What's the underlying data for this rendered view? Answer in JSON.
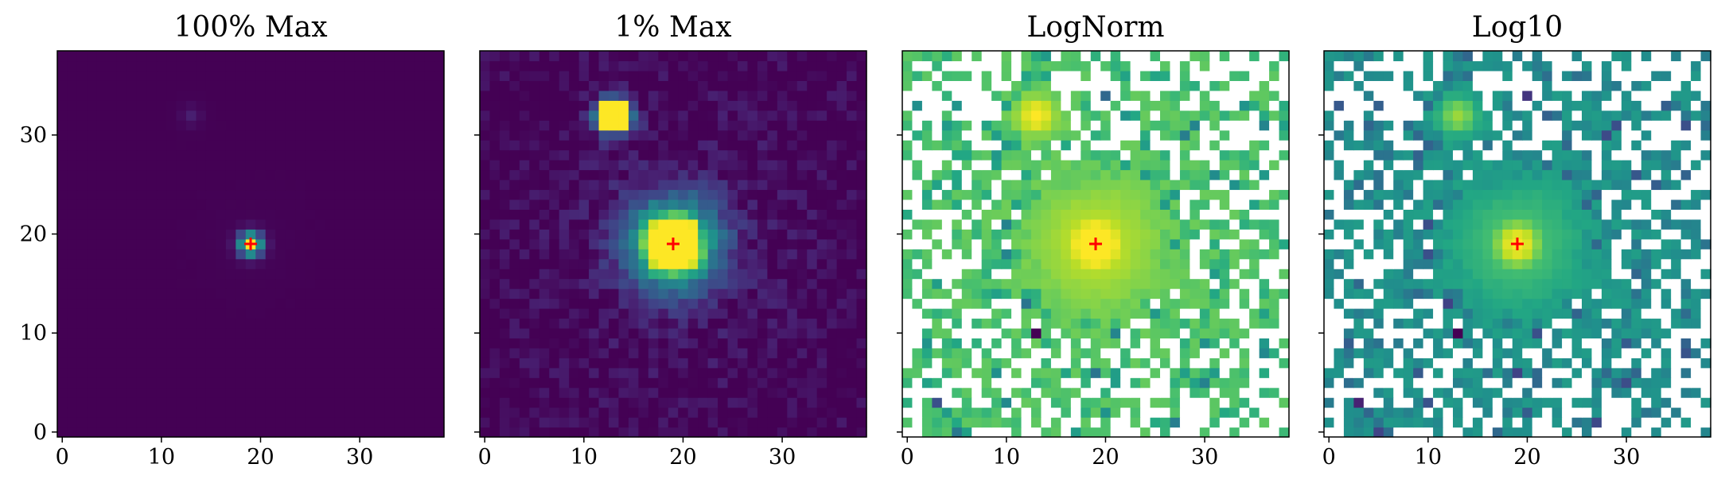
{
  "figure": {
    "colormap": "viridis",
    "masked_color": "#ffffff",
    "marker_color": "#ff0000"
  },
  "chart_data": [
    {
      "type": "heatmap",
      "title": "100% Max",
      "scale": "linear",
      "display_range_fraction_of_max": [
        0,
        1.0
      ],
      "grid_size": [
        39,
        39
      ],
      "xlim": [
        -0.5,
        38.5
      ],
      "ylim": [
        -0.5,
        38.5
      ],
      "xticks": [
        0,
        10,
        20,
        30
      ],
      "yticks": [
        0,
        10,
        20,
        30
      ],
      "ytick_labels_shown": true,
      "marker": {
        "x": 19,
        "y": 19,
        "symbol": "+"
      },
      "sources": [
        {
          "name": "main",
          "x": 19,
          "y": 19
        },
        {
          "name": "secondary",
          "x": 13,
          "y": 32
        }
      ],
      "grid": false
    },
    {
      "type": "heatmap",
      "title": "1% Max",
      "scale": "linear",
      "display_range_fraction_of_max": [
        0,
        0.01
      ],
      "grid_size": [
        39,
        39
      ],
      "xlim": [
        -0.5,
        38.5
      ],
      "ylim": [
        -0.5,
        38.5
      ],
      "xticks": [
        0,
        10,
        20,
        30
      ],
      "yticks": [
        0,
        10,
        20,
        30
      ],
      "ytick_labels_shown": false,
      "marker": {
        "x": 19,
        "y": 19,
        "symbol": "+"
      },
      "sources": [
        {
          "name": "main",
          "x": 19,
          "y": 19
        },
        {
          "name": "secondary",
          "x": 13,
          "y": 32
        }
      ],
      "grid": false
    },
    {
      "type": "heatmap",
      "title": "LogNorm",
      "scale": "log",
      "masked_nonpositive": true,
      "grid_size": [
        39,
        39
      ],
      "xlim": [
        -0.5,
        38.5
      ],
      "ylim": [
        -0.5,
        38.5
      ],
      "xticks": [
        0,
        10,
        20,
        30
      ],
      "yticks": [
        0,
        10,
        20,
        30
      ],
      "ytick_labels_shown": false,
      "marker": {
        "x": 19,
        "y": 19,
        "symbol": "+"
      },
      "sources": [
        {
          "name": "main",
          "x": 19,
          "y": 19
        },
        {
          "name": "secondary",
          "x": 13,
          "y": 32
        }
      ],
      "grid": false
    },
    {
      "type": "heatmap",
      "title": "Log10",
      "scale": "log10",
      "masked_nonpositive": true,
      "grid_size": [
        39,
        39
      ],
      "xlim": [
        -0.5,
        38.5
      ],
      "ylim": [
        -0.5,
        38.5
      ],
      "xticks": [
        0,
        10,
        20,
        30
      ],
      "yticks": [
        0,
        10,
        20,
        30
      ],
      "ytick_labels_shown": false,
      "marker": {
        "x": 19,
        "y": 19,
        "symbol": "+"
      },
      "sources": [
        {
          "name": "main",
          "x": 19,
          "y": 19
        },
        {
          "name": "secondary",
          "x": 13,
          "y": 32
        }
      ],
      "grid": false
    }
  ]
}
